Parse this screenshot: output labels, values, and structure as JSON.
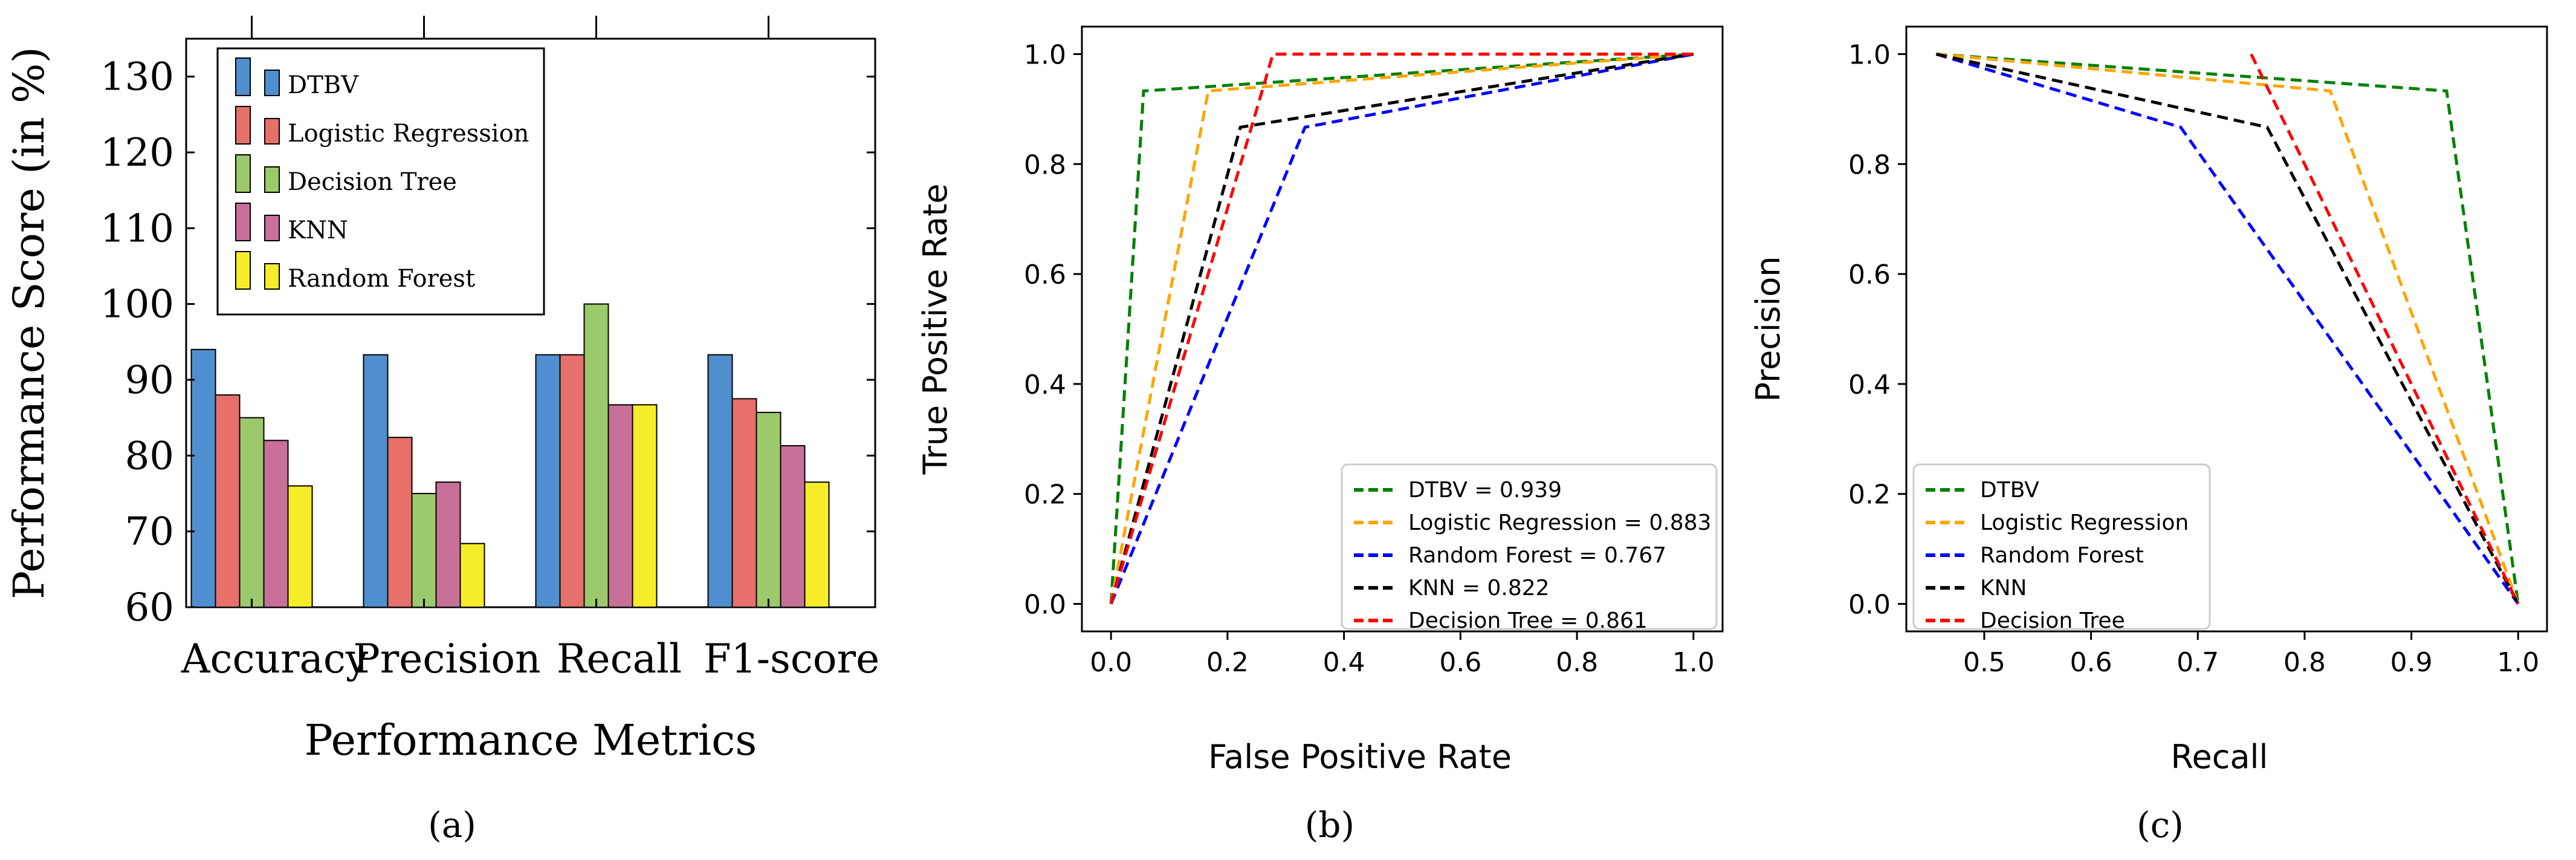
{
  "colors": {
    "DTBV": "#4f8fcf",
    "Logistic Regression": "#e8706a",
    "Decision Tree": "#9cc96b",
    "KNN": "#c87098",
    "Random Forest": "#f6ec2a",
    "roc_green": "#008000",
    "roc_orange": "#ffa500",
    "roc_blue": "#0000ff",
    "roc_black": "#000000",
    "roc_red": "#ff0000"
  },
  "chart_data": [
    {
      "id": "a",
      "type": "bar",
      "caption": "(a)",
      "xlabel": "Performance Metrics",
      "ylabel": "Performance Score (in %)",
      "ylim": [
        60,
        135
      ],
      "yticks": [
        60,
        70,
        80,
        90,
        100,
        110,
        120,
        130
      ],
      "categories": [
        "Accuracy",
        "Precision",
        "Recall",
        "F1-score"
      ],
      "series": [
        {
          "name": "DTBV",
          "values": [
            94,
            93.3,
            93.3,
            93.3
          ]
        },
        {
          "name": "Logistic Regression",
          "values": [
            88,
            82.4,
            93.3,
            87.5
          ]
        },
        {
          "name": "Decision Tree",
          "values": [
            85,
            75,
            100,
            85.7
          ]
        },
        {
          "name": "KNN",
          "values": [
            82,
            76.5,
            86.7,
            81.3
          ]
        },
        {
          "name": "Random Forest",
          "values": [
            76,
            68.4,
            86.7,
            76.5
          ]
        }
      ],
      "legend_position": "top-left"
    },
    {
      "id": "b",
      "type": "line",
      "caption": "(b)",
      "xlabel": "False Positive Rate",
      "ylabel": "True Positive Rate",
      "xlim": [
        -0.05,
        1.05
      ],
      "ylim": [
        -0.05,
        1.05
      ],
      "xticks": [
        "0.0",
        "0.2",
        "0.4",
        "0.6",
        "0.8",
        "1.0"
      ],
      "yticks": [
        "0.0",
        "0.2",
        "0.4",
        "0.6",
        "0.8",
        "1.0"
      ],
      "series": [
        {
          "name": "DTBV = 0.939",
          "color": "roc_green",
          "x": [
            0,
            0.056,
            1
          ],
          "y": [
            0,
            0.933,
            1
          ]
        },
        {
          "name": "Logistic Regression = 0.883",
          "color": "roc_orange",
          "x": [
            0,
            0.167,
            1
          ],
          "y": [
            0,
            0.933,
            1
          ]
        },
        {
          "name": "Random Forest = 0.767",
          "color": "roc_blue",
          "x": [
            0,
            0.333,
            1
          ],
          "y": [
            0,
            0.867,
            1
          ]
        },
        {
          "name": "KNN = 0.822",
          "color": "roc_black",
          "x": [
            0,
            0.222,
            1
          ],
          "y": [
            0,
            0.867,
            1
          ]
        },
        {
          "name": "Decision Tree = 0.861",
          "color": "roc_red",
          "x": [
            0,
            0.278,
            1
          ],
          "y": [
            0,
            1.0,
            1
          ]
        }
      ],
      "legend_position": "lower-right"
    },
    {
      "id": "c",
      "type": "line",
      "caption": "(c)",
      "xlabel": "Recall",
      "ylabel": "Precision",
      "xlim": [
        0.427,
        1.027
      ],
      "ylim": [
        -0.05,
        1.05
      ],
      "xticks": [
        "0.5",
        "0.6",
        "0.7",
        "0.8",
        "0.9",
        "1.0"
      ],
      "yticks": [
        "0.0",
        "0.2",
        "0.4",
        "0.6",
        "0.8",
        "1.0"
      ],
      "series": [
        {
          "name": "DTBV",
          "color": "roc_green",
          "x": [
            0.455,
            0.933,
            1.0
          ],
          "y": [
            1.0,
            0.933,
            0
          ]
        },
        {
          "name": "Logistic Regression",
          "color": "roc_orange",
          "x": [
            0.455,
            0.824,
            1.0
          ],
          "y": [
            1.0,
            0.933,
            0
          ]
        },
        {
          "name": "Random Forest",
          "color": "roc_blue",
          "x": [
            0.455,
            0.684,
            1.0
          ],
          "y": [
            1.0,
            0.867,
            0
          ]
        },
        {
          "name": "KNN",
          "color": "roc_black",
          "x": [
            0.455,
            0.765,
            1.0
          ],
          "y": [
            1.0,
            0.867,
            0
          ]
        },
        {
          "name": "Decision Tree",
          "color": "roc_red",
          "x": [
            0.75,
            1.0
          ],
          "y": [
            1.0,
            0
          ]
        }
      ],
      "legend_position": "lower-left"
    }
  ]
}
